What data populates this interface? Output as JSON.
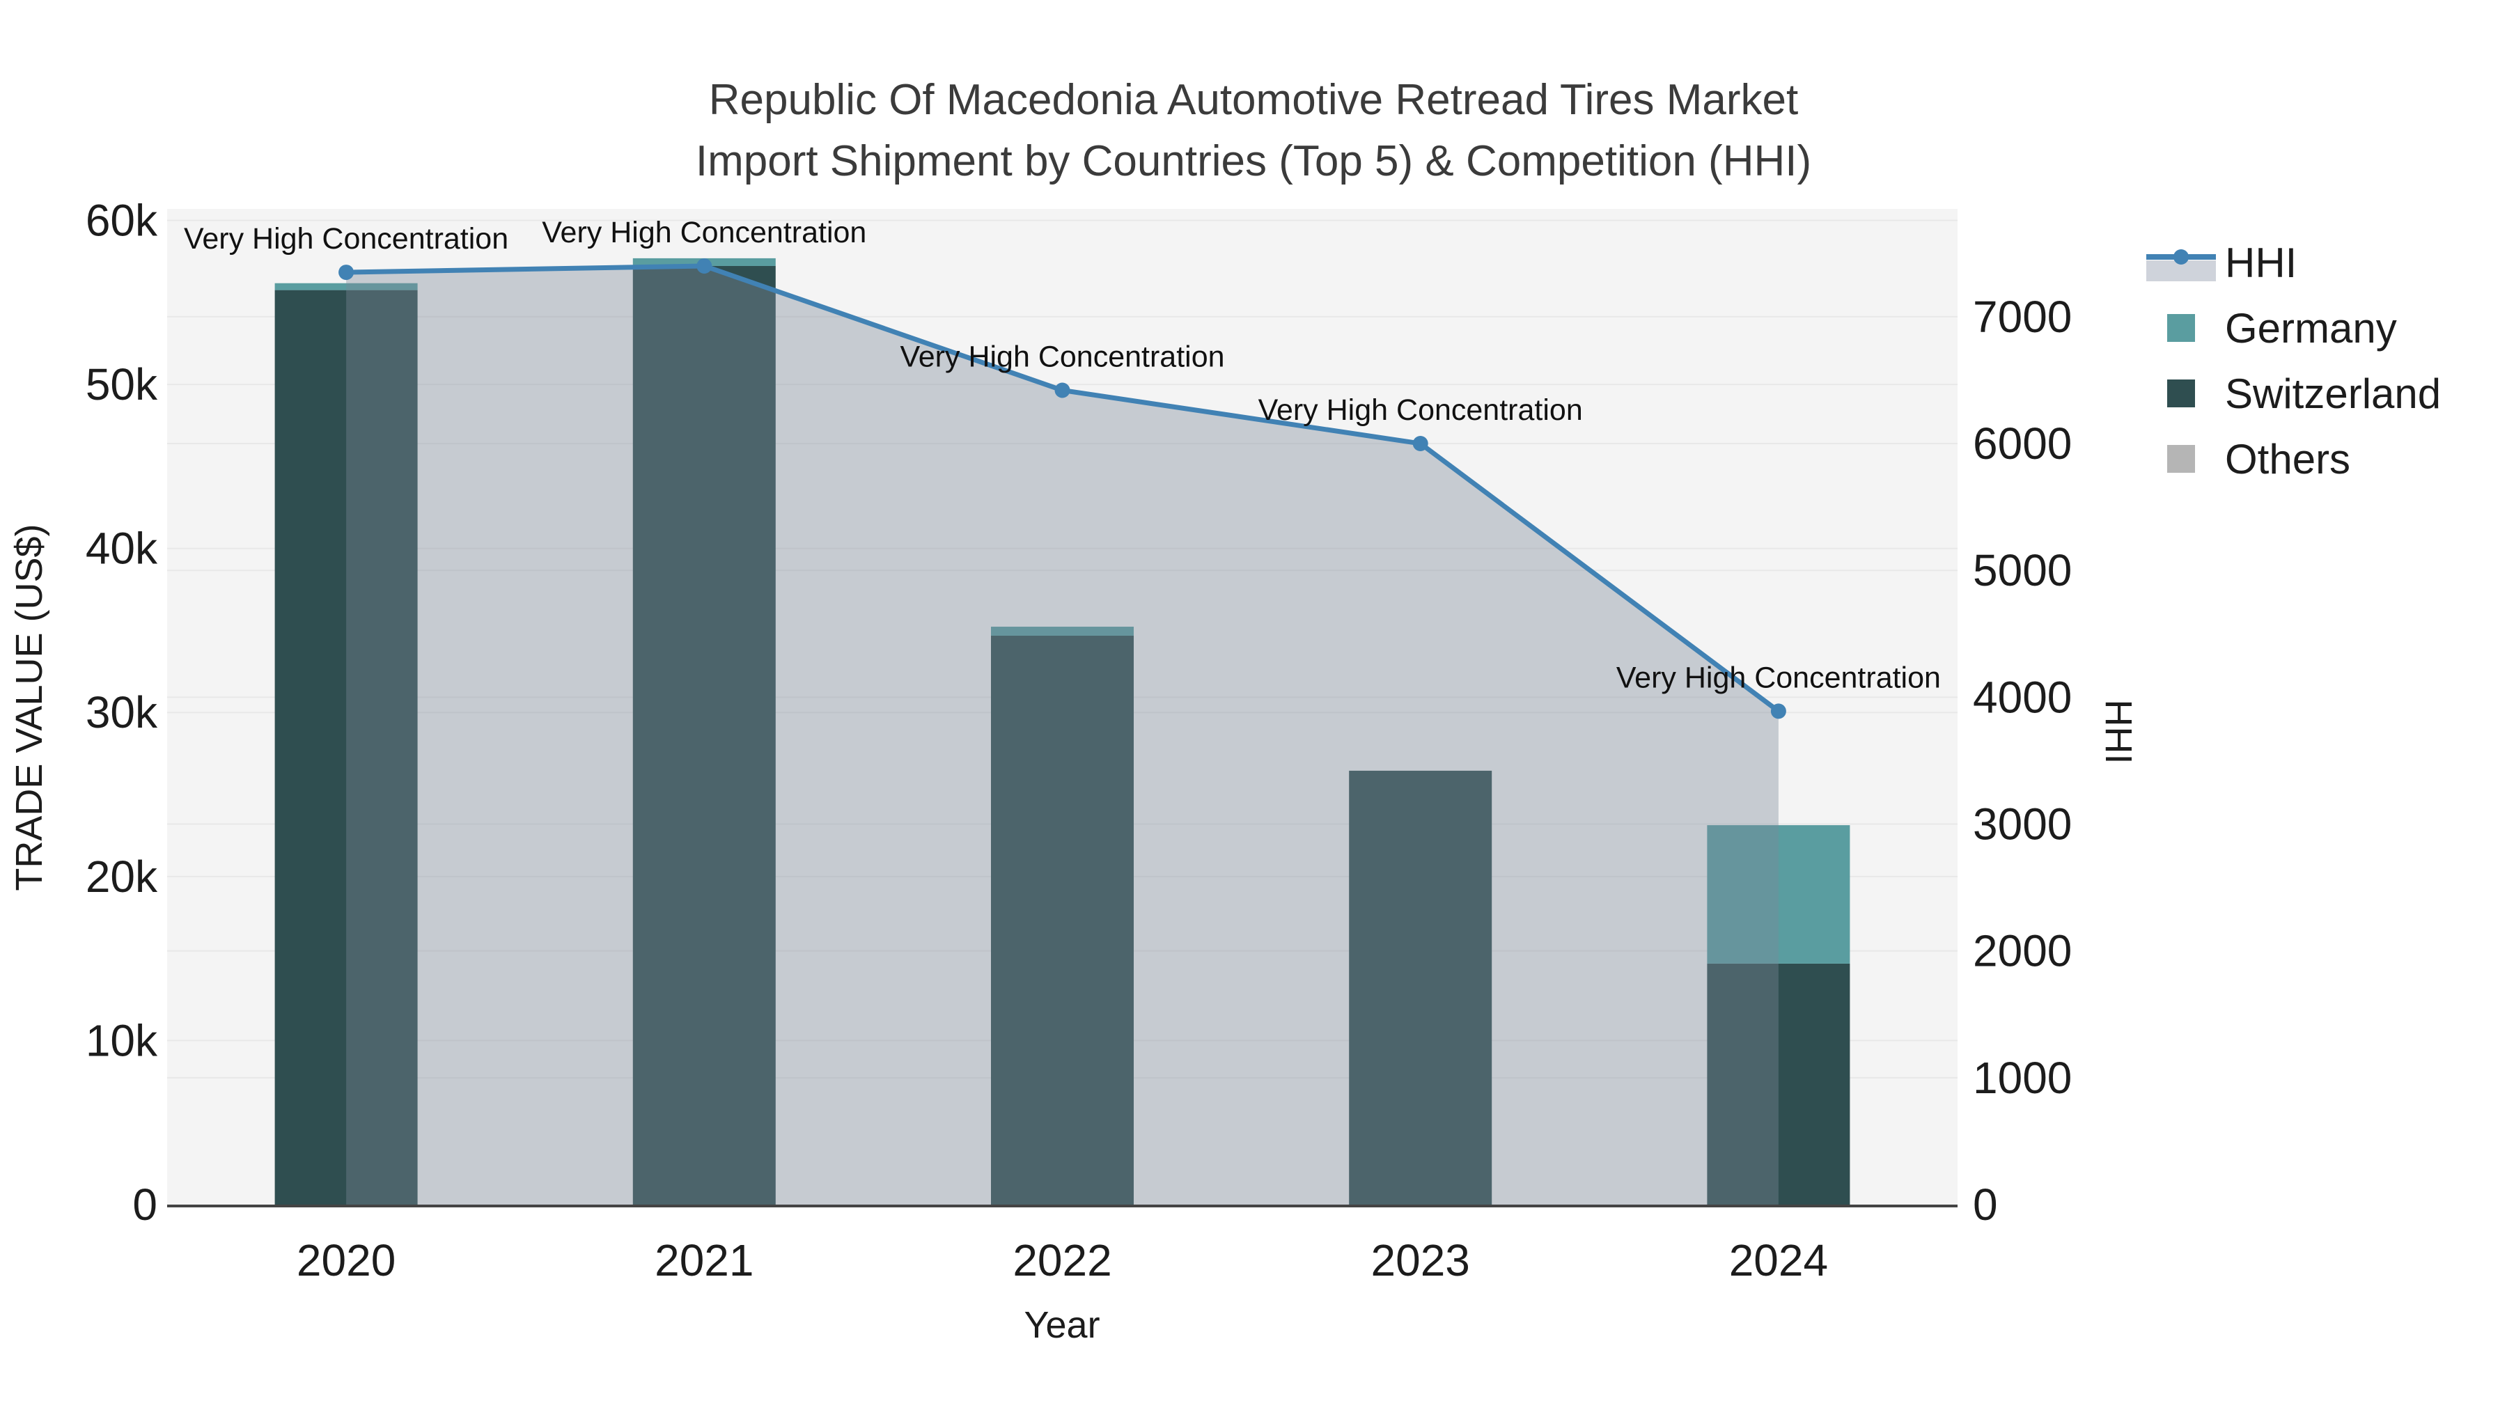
{
  "title": {
    "line1": "Republic Of Macedonia Automotive Retread Tires Market",
    "line2": "Import Shipment by Countries (Top 5) & Competition (HHI)"
  },
  "legend": {
    "items": [
      {
        "label": "HHI",
        "type": "line",
        "color": "#4182B4",
        "fill": "#CFD3DB"
      },
      {
        "label": "Germany",
        "type": "square",
        "color": "#5A9DA0"
      },
      {
        "label": "Switzerland",
        "type": "square",
        "color": "#2F4E50"
      },
      {
        "label": "Others",
        "type": "square",
        "color": "#B5B5B5"
      }
    ]
  },
  "chart_data": {
    "type": "bar",
    "subtype": "stacked-bars-with-line",
    "categories": [
      "2020",
      "2021",
      "2022",
      "2023",
      "2024"
    ],
    "series": [
      {
        "name": "Switzerland",
        "type": "bar",
        "axis": "left",
        "color": "#2F4E50",
        "values": [
          55750,
          57220,
          34680,
          26450,
          14690
        ]
      },
      {
        "name": "Germany",
        "type": "bar",
        "axis": "left",
        "color": "#5A9DA0",
        "values": [
          420,
          470,
          550,
          0,
          8440
        ]
      },
      {
        "name": "Others",
        "type": "bar",
        "axis": "left",
        "color": "#B5B5B5",
        "values": [
          0,
          0,
          0,
          0,
          0
        ]
      },
      {
        "name": "HHI",
        "type": "line",
        "axis": "right",
        "color": "#4182B4",
        "area_fill": "#7C8999",
        "area_opacity": 0.38,
        "marker_radius": 11,
        "line_width": 7,
        "values": [
          7350,
          7400,
          6420,
          6000,
          3890
        ]
      }
    ],
    "annotations": [
      {
        "category": "2020",
        "text": "Very High Concentration"
      },
      {
        "category": "2021",
        "text": "Very High Concentration"
      },
      {
        "category": "2022",
        "text": "Very High Concentration"
      },
      {
        "category": "2023",
        "text": "Very High Concentration"
      },
      {
        "category": "2024",
        "text": "Very High Concentration"
      }
    ],
    "title": "Republic Of Macedonia Automotive Retread Tires Market Import Shipment by Countries (Top 5) & Competition (HHI)",
    "xlabel": "Year",
    "ylabel_left": "TRADE VALUE (US$)",
    "ylabel_right": "HHI",
    "ylim_left": [
      0,
      60700
    ],
    "ylim_right": [
      0,
      7850
    ],
    "y_left_ticks": [
      {
        "value": 0,
        "label": "0"
      },
      {
        "value": 10000,
        "label": "10k"
      },
      {
        "value": 20000,
        "label": "20k"
      },
      {
        "value": 30000,
        "label": "30k"
      },
      {
        "value": 40000,
        "label": "40k"
      },
      {
        "value": 50000,
        "label": "50k"
      },
      {
        "value": 60000,
        "label": "60k"
      }
    ],
    "y_right_ticks": [
      {
        "value": 0,
        "label": "0"
      },
      {
        "value": 1000,
        "label": "1000"
      },
      {
        "value": 2000,
        "label": "2000"
      },
      {
        "value": 3000,
        "label": "3000"
      },
      {
        "value": 4000,
        "label": "4000"
      },
      {
        "value": 5000,
        "label": "5000"
      },
      {
        "value": 6000,
        "label": "6000"
      },
      {
        "value": 7000,
        "label": "7000"
      }
    ],
    "grid": true,
    "legend_position": "right",
    "colors": {
      "plot_background": "#F4F4F4",
      "grid_line": "#E8E8E8",
      "axis_line": "#444444",
      "tick_text": "#1c1c1c",
      "annotation_text": "#111111"
    }
  }
}
